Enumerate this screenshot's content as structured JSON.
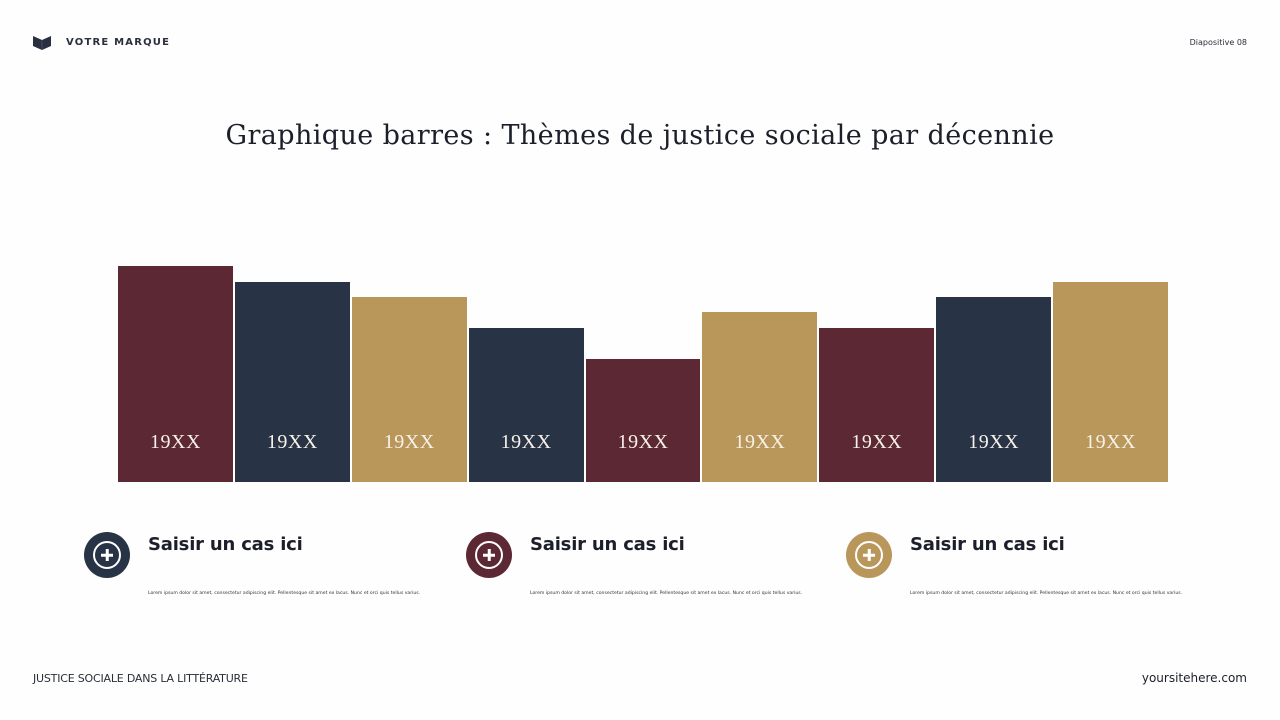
{
  "header": {
    "brand_name": "VOTRE MARQUE",
    "logo_icon": "book-icon",
    "slide_number": "Diapositive 08"
  },
  "title": "Graphique barres : Thèmes de justice sociale par décennie",
  "colors": {
    "burgundy": "#5c2834",
    "navy": "#283346",
    "gold": "#b9975a",
    "text": "#1c1f2a"
  },
  "chart_data": {
    "type": "bar",
    "title": "Graphique barres : Thèmes de justice sociale par décennie",
    "xlabel": "",
    "ylabel": "",
    "grid": false,
    "legend": "none",
    "categories": [
      "19XX",
      "19XX",
      "19XX",
      "19XX",
      "19XX",
      "19XX",
      "19XX",
      "19XX",
      "19XX"
    ],
    "values": [
      14,
      13,
      12,
      10,
      8,
      11,
      10,
      12,
      13
    ],
    "bar_colors": [
      "#5c2834",
      "#283346",
      "#b9975a",
      "#283346",
      "#5c2834",
      "#b9975a",
      "#5c2834",
      "#283346",
      "#b9975a"
    ],
    "ylim": [
      0,
      15.7
    ],
    "note": "No axis shown; values are relative bar heights estimated from pixels (label placed inside each bar)"
  },
  "cases": [
    {
      "title": "Saisir un cas ici",
      "text": "Lorem ipsum dolor sit amet, consectetur adipiscing elit. Pellentesque sit amet ex lacus. Nunc et orci quis tellus varius.",
      "icon": "plus-circle-icon",
      "color": "#283346"
    },
    {
      "title": "Saisir un cas ici",
      "text": "Lorem ipsum dolor sit amet, consectetur adipiscing elit. Pellentesque sit amet ex lacus. Nunc et orci quis tellus varius.",
      "icon": "plus-circle-icon",
      "color": "#5c2834"
    },
    {
      "title": "Saisir un cas ici",
      "text": "Lorem ipsum dolor sit amet, consectetur adipiscing elit. Pellentesque sit amet ex lacus. Nunc et orci quis tellus varius.",
      "icon": "plus-circle-icon",
      "color": "#b9975a"
    }
  ],
  "footer": {
    "left": "JUSTICE SOCIALE DANS LA LITTÉRATURE",
    "right": "yoursitehere.com"
  }
}
